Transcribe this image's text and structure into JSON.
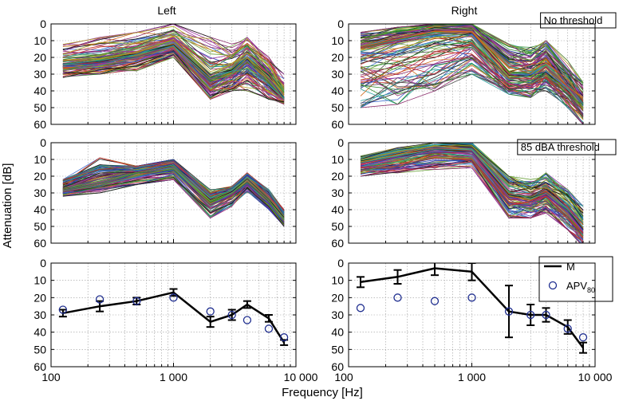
{
  "figure": {
    "ylabel": "Attenuation [dB]",
    "xlabel": "Frequency [Hz]",
    "col_titles": [
      "Left",
      "Right"
    ],
    "row_labels": [
      "No threshold",
      "85 dBA threshold",
      ""
    ]
  },
  "chart_data": [
    {
      "id": "left-no-threshold",
      "type": "line",
      "title": "Left",
      "annotation": "",
      "x": [
        125,
        250,
        500,
        1000,
        2000,
        3000,
        4000,
        6000,
        8000
      ],
      "xscale": "log",
      "xlim": [
        100,
        10000
      ],
      "ylim": [
        0,
        60
      ],
      "y_reversed": true,
      "grid": true,
      "series_count": 120,
      "envelope": {
        "min": [
          12,
          8,
          5,
          0,
          8,
          12,
          8,
          18,
          30
        ],
        "max": [
          32,
          30,
          28,
          20,
          45,
          40,
          40,
          45,
          48
        ],
        "center": [
          24,
          22,
          18,
          12,
          32,
          28,
          20,
          32,
          44
        ]
      }
    },
    {
      "id": "right-no-threshold",
      "type": "line",
      "title": "Right",
      "annotation": "No threshold",
      "x": [
        125,
        250,
        500,
        1000,
        2000,
        3000,
        4000,
        6000,
        8000
      ],
      "xscale": "log",
      "xlim": [
        100,
        10000
      ],
      "ylim": [
        0,
        60
      ],
      "y_reversed": true,
      "grid": true,
      "series_count": 120,
      "envelope": {
        "min": [
          5,
          2,
          0,
          0,
          12,
          14,
          10,
          22,
          35
        ],
        "max": [
          50,
          48,
          40,
          30,
          42,
          44,
          40,
          50,
          60
        ],
        "center": [
          15,
          10,
          5,
          5,
          30,
          30,
          25,
          38,
          48
        ]
      }
    },
    {
      "id": "left-85dba-threshold",
      "type": "line",
      "title": "",
      "annotation": "",
      "x": [
        125,
        250,
        500,
        1000,
        2000,
        3000,
        4000,
        6000,
        8000
      ],
      "xscale": "log",
      "xlim": [
        100,
        10000
      ],
      "ylim": [
        0,
        60
      ],
      "y_reversed": true,
      "grid": true,
      "series_count": 120,
      "envelope": {
        "min": [
          22,
          9,
          14,
          10,
          28,
          26,
          18,
          28,
          40
        ],
        "max": [
          32,
          30,
          25,
          22,
          45,
          38,
          30,
          40,
          50
        ],
        "center": [
          28,
          24,
          18,
          15,
          35,
          30,
          22,
          34,
          46
        ]
      }
    },
    {
      "id": "right-85dba-threshold",
      "type": "line",
      "title": "",
      "annotation": "85 dBA threshold",
      "x": [
        125,
        250,
        500,
        1000,
        2000,
        3000,
        4000,
        6000,
        8000
      ],
      "xscale": "log",
      "xlim": [
        100,
        10000
      ],
      "ylim": [
        0,
        60
      ],
      "y_reversed": true,
      "grid": true,
      "series_count": 120,
      "envelope": {
        "min": [
          8,
          3,
          0,
          0,
          20,
          22,
          18,
          28,
          38
        ],
        "max": [
          20,
          18,
          16,
          15,
          45,
          45,
          42,
          52,
          62
        ],
        "center": [
          12,
          8,
          4,
          5,
          32,
          34,
          30,
          40,
          52
        ]
      }
    },
    {
      "id": "left-summary",
      "type": "line",
      "title": "",
      "annotation": "",
      "xscale": "log",
      "xlim": [
        100,
        10000
      ],
      "ylim": [
        0,
        60
      ],
      "y_reversed": true,
      "grid": true,
      "series": [
        {
          "name": "M",
          "x": [
            125,
            250,
            500,
            1000,
            2000,
            3000,
            4000,
            6000,
            8000
          ],
          "values": [
            29,
            25,
            22,
            17,
            34,
            30,
            24,
            32,
            46
          ],
          "error": [
            2,
            3,
            2,
            2,
            3,
            3,
            2,
            2,
            1.5
          ]
        },
        {
          "name": "APV80",
          "x": [
            125,
            250,
            500,
            1000,
            2000,
            3000,
            4000,
            6000,
            8000
          ],
          "values": [
            27,
            21,
            22,
            20,
            28,
            30,
            33,
            38,
            43
          ]
        }
      ]
    },
    {
      "id": "right-summary",
      "type": "line",
      "title": "",
      "annotation": "",
      "xscale": "log",
      "xlim": [
        100,
        10000
      ],
      "ylim": [
        0,
        60
      ],
      "y_reversed": true,
      "grid": true,
      "legend": {
        "placement": "top-right",
        "m_label": "M",
        "apv_label": "APV",
        "apv_sub": "80"
      },
      "series": [
        {
          "name": "M",
          "x": [
            125,
            250,
            500,
            1000,
            2000,
            3000,
            4000,
            6000,
            8000
          ],
          "values": [
            11,
            8,
            3,
            5,
            28,
            30,
            30,
            37,
            49
          ],
          "error": [
            3,
            4,
            4,
            5,
            15,
            6,
            4,
            4,
            3
          ]
        },
        {
          "name": "APV80",
          "x": [
            125,
            250,
            500,
            1000,
            2000,
            3000,
            4000,
            6000,
            8000
          ],
          "values": [
            26,
            20,
            22,
            20,
            28,
            30,
            30,
            38,
            43
          ]
        }
      ]
    }
  ],
  "colors": {
    "grid": "#9a9a9a",
    "marker": "#1f2e8f",
    "palette": [
      "#c03030",
      "#2a8a2a",
      "#2a3ab0",
      "#a03aa0",
      "#2aa0a0",
      "#b0a020",
      "#505050",
      "#d06a1a",
      "#1a1a1a",
      "#3a6ad0",
      "#8a2a6a",
      "#6aa03a"
    ]
  },
  "axis_ticks": {
    "y": [
      "0",
      "10",
      "20",
      "30",
      "40",
      "50",
      "60"
    ],
    "x_left": [
      "100",
      "1 000",
      "10 000"
    ],
    "x_right": [
      "100",
      "1 000",
      "10 000"
    ]
  }
}
